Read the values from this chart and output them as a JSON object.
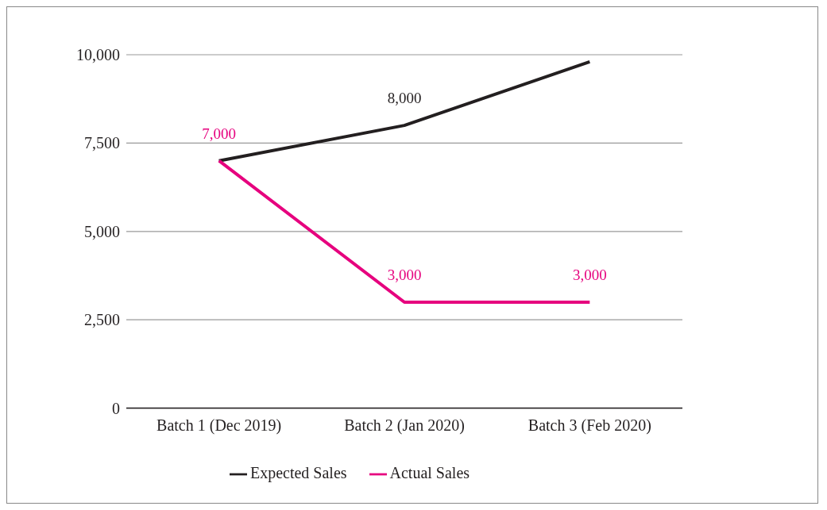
{
  "chart_data": {
    "type": "line",
    "categories": [
      "Batch 1 (Dec 2019)",
      "Batch 2 (Jan 2020)",
      "Batch 3 (Feb 2020)"
    ],
    "series": [
      {
        "name": "Expected Sales",
        "color": "#231f20",
        "values": [
          7000,
          8000,
          9800
        ],
        "value_labels": [
          null,
          "8,000",
          null
        ]
      },
      {
        "name": "Actual Sales",
        "color": "#e6007e",
        "values": [
          7000,
          3000,
          3000
        ],
        "value_labels": [
          "7,000",
          "3,000",
          "3,000"
        ]
      }
    ],
    "ylim": [
      0,
      10000
    ],
    "yticks": [
      {
        "value": 0,
        "label": "0"
      },
      {
        "value": 2500,
        "label": "2,500"
      },
      {
        "value": 5000,
        "label": "5,000"
      },
      {
        "value": 7500,
        "label": "7,500"
      },
      {
        "value": 10000,
        "label": "10,000"
      }
    ],
    "grid": "y",
    "legend": "bottom",
    "marker": "none",
    "line_style": "solid"
  }
}
